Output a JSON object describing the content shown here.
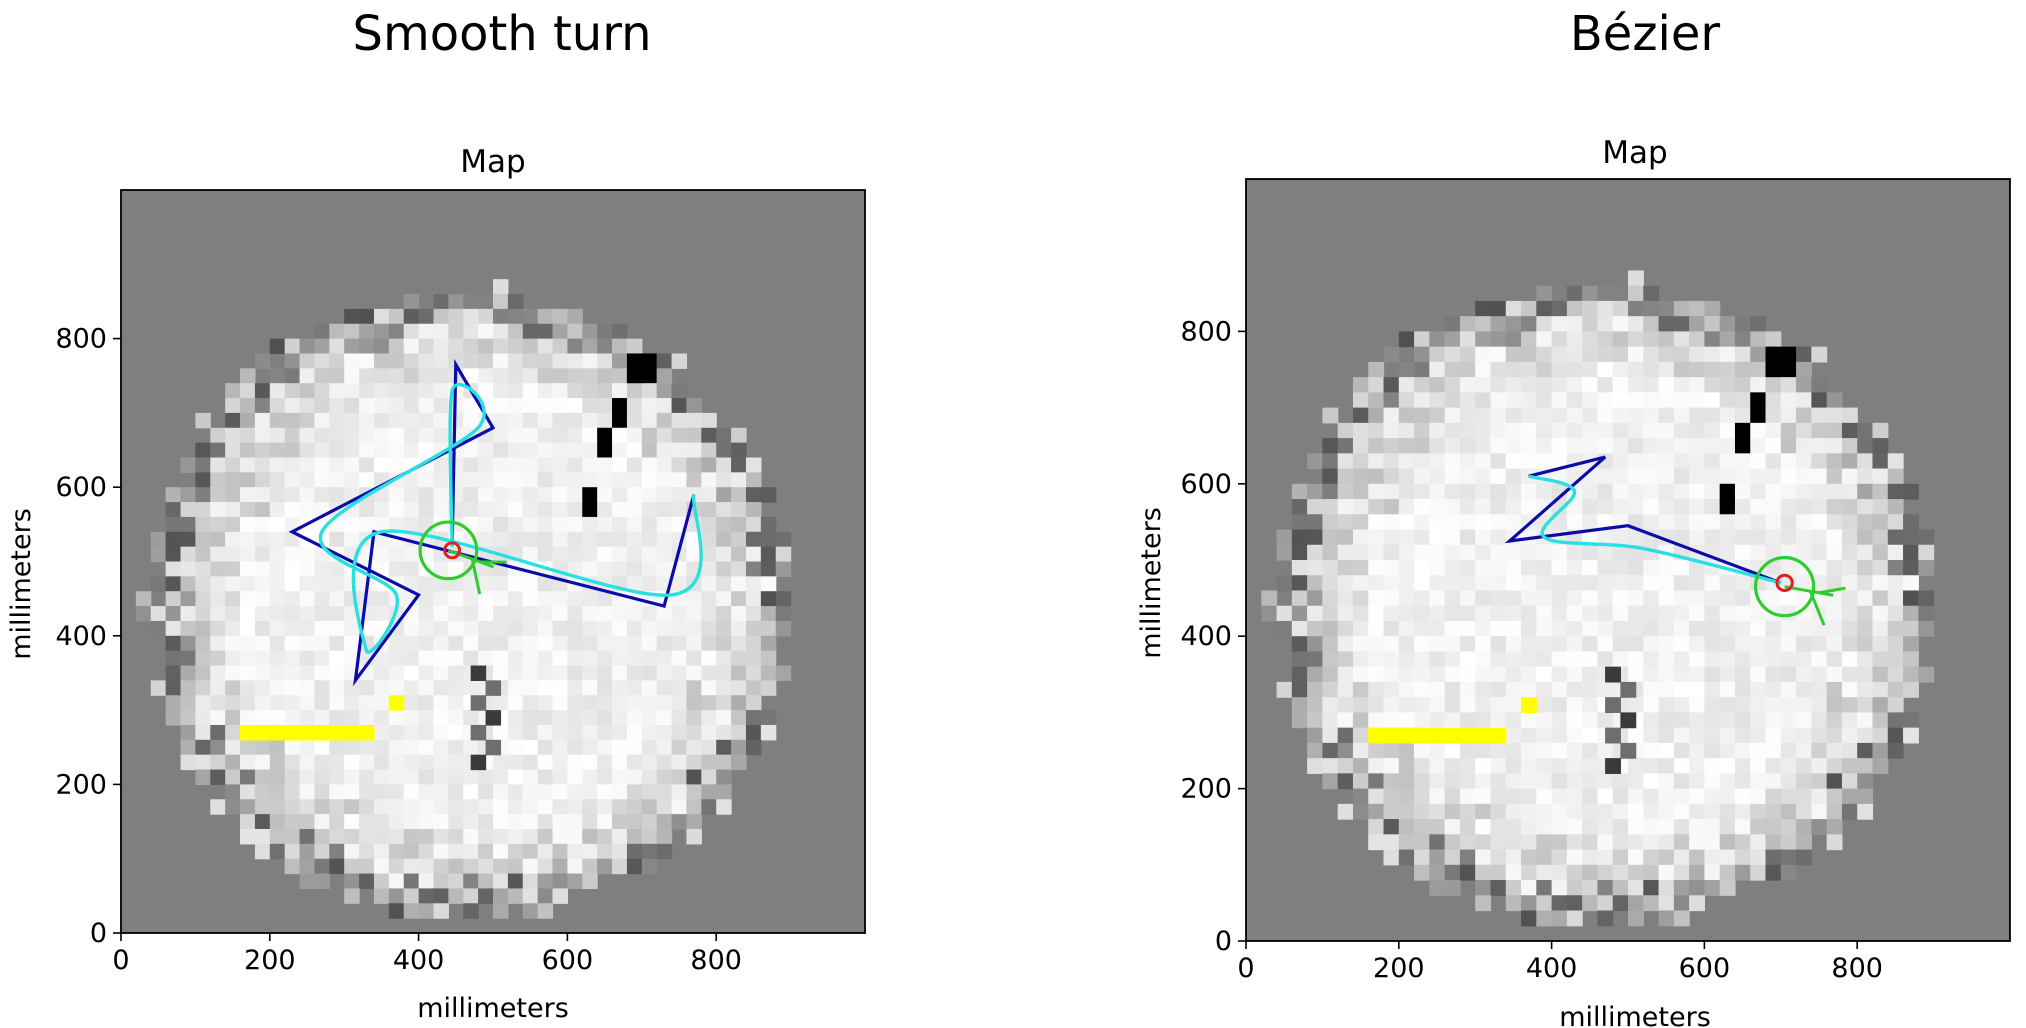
{
  "chart_data": [
    {
      "type": "heatmap",
      "panel_title": "Smooth turn",
      "title": "Map",
      "xlabel": "millimeters",
      "ylabel": "millimeters",
      "xlim": [
        0,
        1000
      ],
      "ylim": [
        0,
        1000
      ],
      "x_ticks": [
        0,
        200,
        400,
        600,
        800
      ],
      "y_ticks": [
        0,
        200,
        400,
        600,
        800
      ],
      "x_tick_labels": [
        "0",
        "200",
        "400",
        "600",
        "800"
      ],
      "y_tick_labels": [
        "0",
        "200",
        "400",
        "600",
        "800"
      ],
      "grid": false,
      "colors": {
        "background": "#7f7f7f",
        "free_region": "#ffff00",
        "planned_path": "#0b0ba8",
        "smoothed_path": "#28e0e0",
        "robot": "#2ecc2e",
        "target": "#e02020",
        "obstacle": "#000000"
      },
      "free_region_cells": [
        [
          36,
          8,
          16
        ],
        [
          26,
          20,
          12
        ],
        [
          30,
          20,
          12
        ],
        [
          38,
          22,
          12
        ],
        [
          34,
          18,
          18
        ],
        [
          28,
          32,
          16
        ],
        [
          42,
          34,
          12
        ],
        [
          48,
          40,
          10
        ],
        [
          52,
          54,
          10
        ],
        [
          38,
          44,
          16
        ],
        [
          44,
          54,
          20
        ],
        [
          28,
          60,
          14
        ]
      ],
      "obstacle_cells": [
        [
          680,
          720,
          780
        ],
        [
          660,
          680,
          720
        ],
        [
          640,
          660,
          680
        ],
        [
          620,
          640,
          600
        ]
      ],
      "planned_path": [
        [
          445,
          520
        ],
        [
          450,
          765
        ],
        [
          500,
          680
        ],
        [
          230,
          540
        ],
        [
          400,
          455
        ],
        [
          315,
          340
        ],
        [
          340,
          540
        ],
        [
          730,
          440
        ],
        [
          770,
          590
        ]
      ],
      "smoothed_path": [
        [
          445,
          520
        ],
        [
          445,
          730
        ],
        [
          480,
          680
        ],
        [
          270,
          540
        ],
        [
          370,
          455
        ],
        [
          330,
          380
        ],
        [
          350,
          540
        ],
        [
          740,
          455
        ],
        [
          770,
          590
        ]
      ],
      "robot": {
        "x": 440,
        "y": 515,
        "radius": 38,
        "heading_deg": -20
      },
      "target": {
        "x": 445,
        "y": 515,
        "radius": 10
      }
    },
    {
      "type": "heatmap",
      "panel_title": "Bézier",
      "title": "Map",
      "xlabel": "millimeters",
      "ylabel": "millimeters",
      "xlim": [
        0,
        1000
      ],
      "ylim": [
        0,
        1000
      ],
      "x_ticks": [
        0,
        200,
        400,
        600,
        800
      ],
      "y_ticks": [
        0,
        200,
        400,
        600,
        800
      ],
      "x_tick_labels": [
        "0",
        "200",
        "400",
        "600",
        "800"
      ],
      "y_tick_labels": [
        "0",
        "200",
        "400",
        "600",
        "800"
      ],
      "grid": false,
      "colors": {
        "background": "#7f7f7f",
        "free_region": "#ffff00",
        "planned_path": "#0b0ba8",
        "smoothed_path": "#28e0e0",
        "robot": "#2ecc2e",
        "target": "#e02020",
        "obstacle": "#000000"
      },
      "free_region_cells": [
        [
          36,
          8,
          16
        ],
        [
          26,
          20,
          12
        ],
        [
          30,
          20,
          12
        ],
        [
          38,
          22,
          12
        ],
        [
          34,
          18,
          18
        ],
        [
          28,
          32,
          16
        ],
        [
          42,
          34,
          12
        ],
        [
          48,
          40,
          10
        ],
        [
          52,
          54,
          10
        ],
        [
          38,
          44,
          16
        ],
        [
          44,
          54,
          20
        ],
        [
          28,
          60,
          14
        ]
      ],
      "obstacle_cells": [
        [
          680,
          720,
          780
        ],
        [
          660,
          680,
          720
        ],
        [
          640,
          660,
          680
        ],
        [
          620,
          640,
          600
        ]
      ],
      "planned_path": [
        [
          700,
          470
        ],
        [
          500,
          545
        ],
        [
          345,
          525
        ],
        [
          470,
          635
        ],
        [
          370,
          610
        ]
      ],
      "smoothed_path": [
        [
          700,
          470
        ],
        [
          520,
          515
        ],
        [
          390,
          530
        ],
        [
          430,
          590
        ],
        [
          370,
          610
        ]
      ],
      "robot": {
        "x": 705,
        "y": 465,
        "radius": 38,
        "heading_deg": -10
      },
      "target": {
        "x": 705,
        "y": 470,
        "radius": 10
      }
    }
  ]
}
